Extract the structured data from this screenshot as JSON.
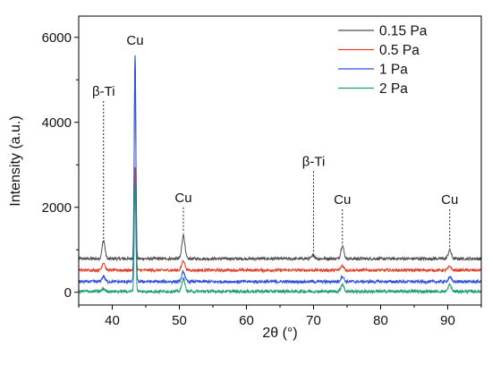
{
  "chart_data": {
    "type": "line",
    "title": "",
    "xlabel": "2θ (°)",
    "ylabel": "Intensity (a.u.)",
    "xlim": [
      35,
      95
    ],
    "ylim": [
      -300,
      6500
    ],
    "xticks": [
      40,
      50,
      60,
      70,
      80,
      90
    ],
    "yticks": [
      0,
      2000,
      4000,
      6000
    ],
    "grid": false,
    "legend_position": "top-right",
    "series": [
      {
        "name": "0.15 Pa",
        "color": "#4d4d4d",
        "baseline": 790,
        "peaks": [
          {
            "x": 38.7,
            "height": 420
          },
          {
            "x": 43.4,
            "height": 4800
          },
          {
            "x": 50.6,
            "height": 560
          },
          {
            "x": 70.0,
            "height": 80
          },
          {
            "x": 74.3,
            "height": 310
          },
          {
            "x": 90.3,
            "height": 210
          }
        ]
      },
      {
        "name": "0.5 Pa",
        "color": "#e0452f",
        "baseline": 520,
        "peaks": [
          {
            "x": 38.7,
            "height": 180
          },
          {
            "x": 43.4,
            "height": 2450
          },
          {
            "x": 50.6,
            "height": 230
          },
          {
            "x": 74.3,
            "height": 110
          },
          {
            "x": 90.3,
            "height": 90
          }
        ]
      },
      {
        "name": "1 Pa",
        "color": "#2f4fe0",
        "baseline": 250,
        "peaks": [
          {
            "x": 38.7,
            "height": 130
          },
          {
            "x": 43.4,
            "height": 5350
          },
          {
            "x": 50.6,
            "height": 240
          },
          {
            "x": 74.3,
            "height": 130
          },
          {
            "x": 90.3,
            "height": 110
          }
        ]
      },
      {
        "name": "2 Pa",
        "color": "#1a9e6a",
        "baseline": 20,
        "peaks": [
          {
            "x": 38.7,
            "height": 60
          },
          {
            "x": 43.4,
            "height": 2500
          },
          {
            "x": 50.6,
            "height": 310
          },
          {
            "x": 74.3,
            "height": 170
          },
          {
            "x": 90.3,
            "height": 160
          }
        ]
      }
    ],
    "annotations": [
      {
        "label": "β-Ti",
        "x": 38.7,
        "y_top": 4500,
        "y_bottom": 1150
      },
      {
        "label": "Cu",
        "x": 43.4,
        "y_top": 5700,
        "y_bottom": 5700
      },
      {
        "label": "Cu",
        "x": 50.6,
        "y_top": 2000,
        "y_bottom": 1400
      },
      {
        "label": "β-Ti",
        "x": 70.0,
        "y_top": 2850,
        "y_bottom": 850
      },
      {
        "label": "Cu",
        "x": 74.3,
        "y_top": 1950,
        "y_bottom": 1150
      },
      {
        "label": "Cu",
        "x": 90.3,
        "y_top": 1950,
        "y_bottom": 1050
      }
    ]
  }
}
